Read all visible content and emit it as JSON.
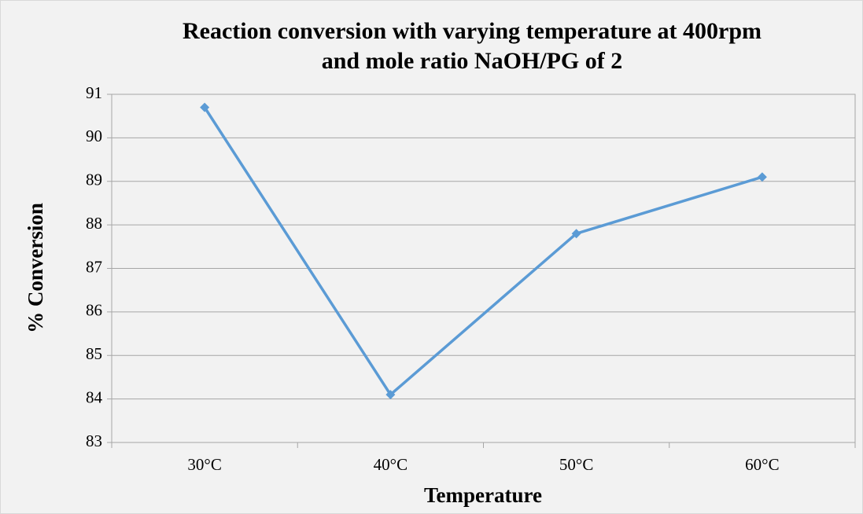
{
  "chart_data": {
    "type": "line",
    "title": [
      "Reaction conversion with varying temperature at 400rpm",
      "and mole ratio NaOH/PG of 2"
    ],
    "xlabel": "Temperature",
    "ylabel": "% Conversion",
    "categories": [
      "30°C",
      "40°C",
      "50°C",
      "60°C"
    ],
    "series": [
      {
        "name": "% Conversion",
        "color": "#5b9bd5",
        "values": [
          90.7,
          84.1,
          87.8,
          89.1
        ]
      }
    ],
    "ylim": [
      83,
      91
    ],
    "yticks": [
      83,
      84,
      85,
      86,
      87,
      88,
      89,
      90,
      91
    ],
    "grid": true
  }
}
